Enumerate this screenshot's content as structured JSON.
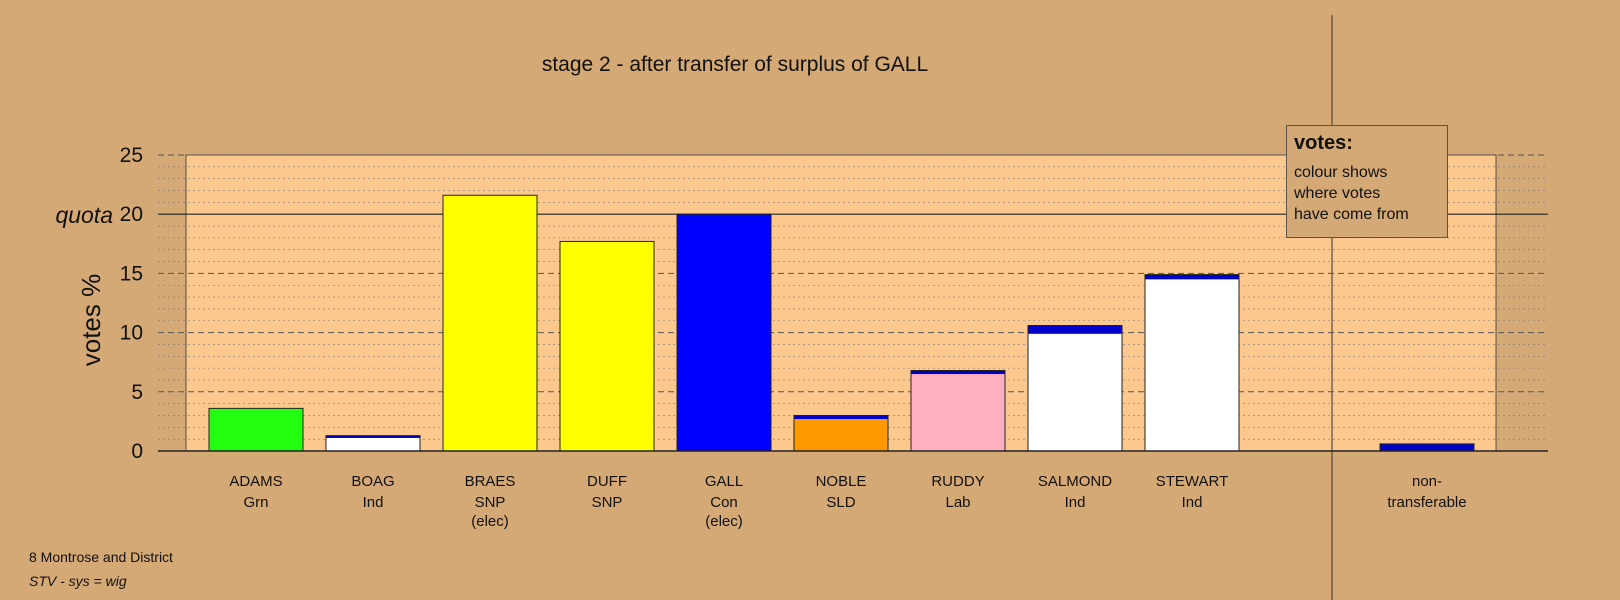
{
  "chart_data": {
    "type": "bar",
    "title": "stage 2 - after transfer of surplus of GALL",
    "ylabel": "votes %",
    "ylim": [
      0,
      25
    ],
    "yticks": [
      0,
      5,
      10,
      15,
      20,
      25
    ],
    "quota": {
      "label": "quota",
      "value": 20
    },
    "candidates": [
      {
        "name": "ADAMS",
        "party": "Grn",
        "status": "",
        "segments": [
          {
            "value": 3.6,
            "color": "#22ff11"
          }
        ]
      },
      {
        "name": "BOAG",
        "party": "Ind",
        "status": "",
        "segments": [
          {
            "value": 1.1,
            "color": "#ffffff"
          },
          {
            "value": 0.2,
            "color": "#0000cc"
          }
        ]
      },
      {
        "name": "BRAES",
        "party": "SNP",
        "status": "(elec)",
        "segments": [
          {
            "value": 21.6,
            "color": "#ffff00"
          }
        ]
      },
      {
        "name": "DUFF",
        "party": "SNP",
        "status": "",
        "segments": [
          {
            "value": 17.7,
            "color": "#ffff00"
          }
        ]
      },
      {
        "name": "GALL",
        "party": "Con",
        "status": "(elec)",
        "segments": [
          {
            "value": 20.0,
            "color": "#0000ff"
          }
        ]
      },
      {
        "name": "NOBLE",
        "party": "SLD",
        "status": "",
        "segments": [
          {
            "value": 2.7,
            "color": "#ff9900"
          },
          {
            "value": 0.3,
            "color": "#0000cc"
          }
        ]
      },
      {
        "name": "RUDDY",
        "party": "Lab",
        "status": "",
        "segments": [
          {
            "value": 6.5,
            "color": "#ffb0c0"
          },
          {
            "value": 0.3,
            "color": "#0000cc"
          }
        ]
      },
      {
        "name": "SALMOND",
        "party": "Ind",
        "status": "",
        "segments": [
          {
            "value": 9.9,
            "color": "#ffffff"
          },
          {
            "value": 0.7,
            "color": "#0000cc"
          }
        ]
      },
      {
        "name": "STEWART",
        "party": "Ind",
        "status": "",
        "segments": [
          {
            "value": 14.5,
            "color": "#ffffff"
          },
          {
            "value": 0.4,
            "color": "#0000cc"
          }
        ]
      }
    ],
    "nontransferable": {
      "name": "non-",
      "name2": "transferable",
      "segments": [
        {
          "value": 0.6,
          "color": "#0000cc"
        }
      ]
    }
  },
  "legend": {
    "title": "votes:",
    "line1": "colour shows",
    "line2": "where votes",
    "line3": "have come from"
  },
  "footer": {
    "constituency": "8 Montrose and District",
    "system": "STV - sys = wig"
  }
}
